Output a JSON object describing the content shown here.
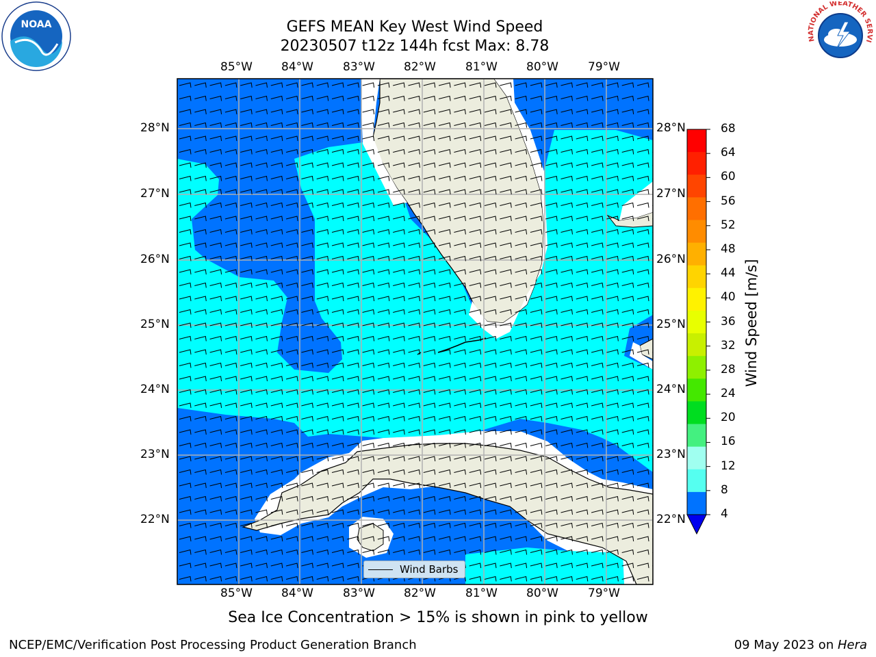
{
  "title": {
    "line1": "GEFS MEAN Key West Wind Speed",
    "line2": "20230507 t12z 144h fcst   Max: 8.78"
  },
  "logos": {
    "left": {
      "text": "NOAA",
      "icon": "noaa-logo-icon"
    },
    "right": {
      "text": "NATIONAL WEATHER SERVICE",
      "icon": "nws-logo-icon"
    }
  },
  "map": {
    "lon_labels": [
      "85°W",
      "84°W",
      "83°W",
      "82°W",
      "81°W",
      "80°W",
      "79°W"
    ],
    "lat_labels": [
      "28°N",
      "27°N",
      "26°N",
      "25°N",
      "24°N",
      "23°N",
      "22°N"
    ],
    "lon_range": [
      -86,
      -78.3
    ],
    "lat_range": [
      21.0,
      28.8
    ],
    "land_color": "#ecedde",
    "grid_color": "#b0b0b0",
    "legend_label": "Wind Barbs"
  },
  "colorbar": {
    "title": "Wind Speed [m/s]",
    "ticks": [
      "68",
      "64",
      "60",
      "56",
      "52",
      "48",
      "44",
      "40",
      "36",
      "32",
      "28",
      "24",
      "20",
      "16",
      "12",
      "8",
      "4"
    ],
    "colors": [
      "#ff0000",
      "#ff2000",
      "#ff4500",
      "#ff6f00",
      "#ff8c00",
      "#ffb000",
      "#ffd400",
      "#fff200",
      "#e8ff00",
      "#c8f000",
      "#8ef000",
      "#44e800",
      "#00dd20",
      "#44f080",
      "#a0fff0",
      "#55fff0",
      "#00ffff",
      "#0073ff"
    ],
    "under_color": "#0000ee"
  },
  "note": "Sea Ice Concentration > 15% is shown in pink to yellow",
  "footer": {
    "left": "NCEP/EMC/Verification Post Processing Product Generation Branch",
    "right_date": "09 May 2023 on ",
    "right_host": "Hera"
  }
}
